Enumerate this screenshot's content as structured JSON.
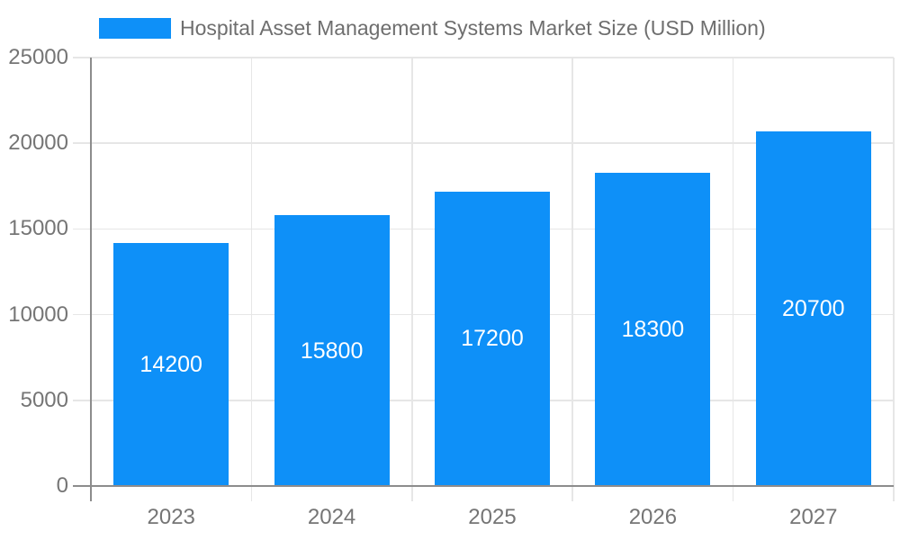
{
  "chart_data": {
    "type": "bar",
    "title": "Hospital Asset Management Systems Market Size (USD Million)",
    "legend": {
      "position": "top",
      "label": "Hospital Asset Management Systems Market Size (USD Million)"
    },
    "categories": [
      "2023",
      "2024",
      "2025",
      "2026",
      "2027"
    ],
    "values": [
      14200,
      15800,
      17200,
      18300,
      20700
    ],
    "yticks": [
      0,
      5000,
      10000,
      15000,
      20000,
      25000
    ],
    "ylim": [
      0,
      25000
    ],
    "xlabel": "",
    "ylabel": "",
    "grid": true,
    "bar_value_labels_inside": true,
    "colors": {
      "bar": "#0E90F8",
      "bar_label": "#FFFFFF",
      "axis": "#8C8C8C",
      "grid": "#E6E6E6",
      "tick_label": "#757575",
      "title": "#6E6E6E",
      "background": "#FFFFFF"
    }
  }
}
